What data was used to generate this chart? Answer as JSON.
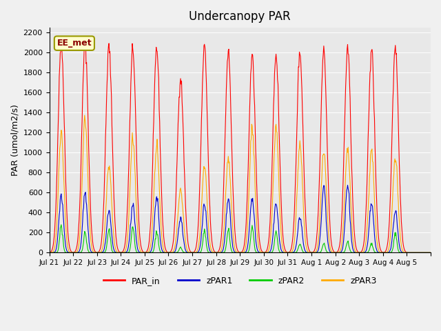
{
  "title": "Undercanopy PAR",
  "ylabel": "PAR (umol/m2/s)",
  "annotation": "EE_met",
  "ylim": [
    0,
    2250
  ],
  "yticks": [
    0,
    200,
    400,
    600,
    800,
    1000,
    1200,
    1400,
    1600,
    1800,
    2000,
    2200
  ],
  "colors": {
    "PAR_in": "#ff0000",
    "zPAR1": "#0000cc",
    "zPAR2": "#00cc00",
    "zPAR3": "#ffaa00"
  },
  "bg_color": "#e8e8e8",
  "legend_labels": [
    "PAR_in",
    "zPAR1",
    "zPAR2",
    "zPAR3"
  ],
  "xtick_labels": [
    "Jul 21",
    "Jul 22",
    "Jul 23",
    "Jul 24",
    "Jul 25",
    "Jul 26",
    "Jul 27",
    "Jul 28",
    "Jul 29",
    "Jul 30",
    "Jul 31",
    "Aug 1",
    "Aug 2",
    "Aug 3",
    "Aug 4",
    "Aug 5"
  ],
  "num_days": 16,
  "points_per_day": 48,
  "day_peaks_PAR_in": [
    2100,
    2100,
    2060,
    2040,
    2050,
    1750,
    2050,
    2000,
    1980,
    1990,
    2010,
    2020,
    2050,
    2030,
    2060,
    0
  ],
  "day_peaks_zPAR1": [
    580,
    600,
    410,
    490,
    560,
    350,
    480,
    540,
    560,
    490,
    350,
    670,
    690,
    480,
    420,
    0
  ],
  "day_peaks_zPAR2": [
    280,
    200,
    230,
    250,
    220,
    50,
    220,
    230,
    260,
    200,
    90,
    90,
    110,
    90,
    200,
    0
  ],
  "day_peaks_zPAR3": [
    1200,
    1340,
    870,
    1140,
    1060,
    630,
    860,
    950,
    1250,
    1260,
    1090,
    1010,
    1050,
    1010,
    960,
    0
  ]
}
